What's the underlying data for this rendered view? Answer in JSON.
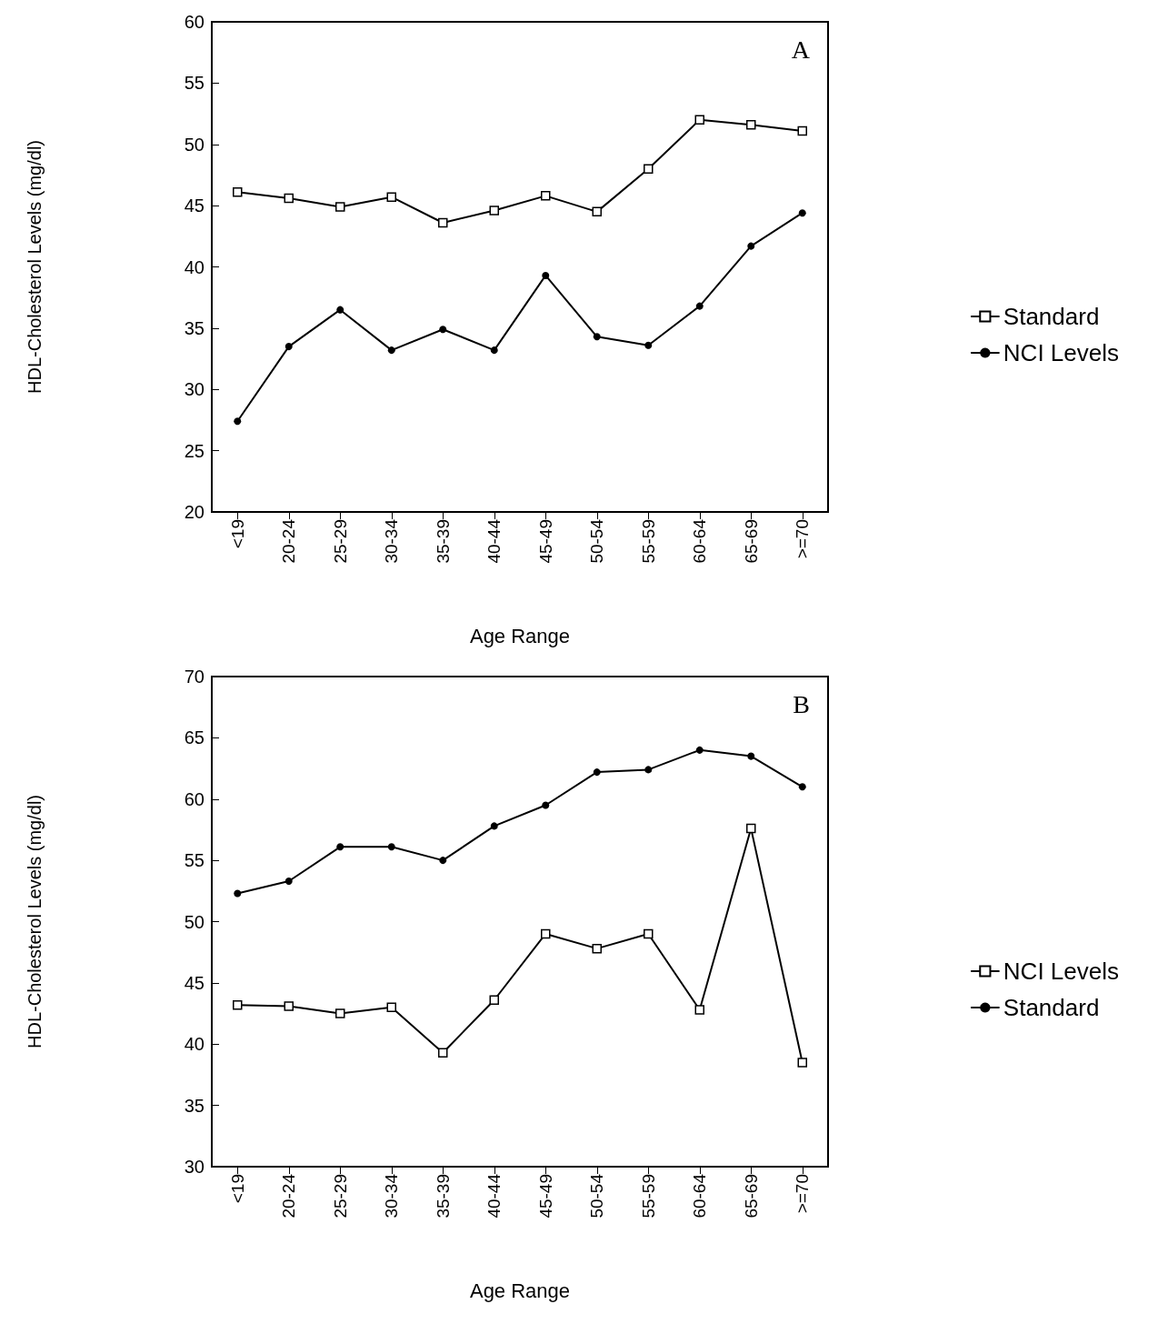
{
  "chart_data": [
    {
      "type": "line",
      "ylabel": "HDL-Cholesterol Levels (mg/dl)",
      "xlabel": "Age Range",
      "annotations": [
        "A"
      ],
      "categories": [
        "<19",
        "20-24",
        "25-29",
        "30-34",
        "35-39",
        "40-44",
        "45-49",
        "50-54",
        "55-59",
        "60-64",
        "65-69",
        ">=70"
      ],
      "series": [
        {
          "name": "Standard",
          "color": "#000000",
          "marker": "square",
          "values": [
            46.1,
            45.6,
            44.9,
            45.7,
            43.6,
            44.6,
            45.8,
            44.5,
            48.0,
            52.0,
            51.6,
            51.1
          ]
        },
        {
          "name": "NCI Levels",
          "color": "#000000",
          "marker": "circle",
          "values": [
            27.4,
            33.5,
            36.5,
            33.2,
            34.9,
            33.2,
            39.3,
            34.3,
            33.6,
            36.8,
            41.7,
            44.4
          ]
        }
      ],
      "ylim": [
        20,
        60
      ],
      "yticks": [
        20,
        25,
        30,
        35,
        40,
        45,
        50,
        55,
        60
      ],
      "grid": false,
      "legend": "right",
      "line_style": "solid"
    },
    {
      "type": "line",
      "ylabel": "HDL-Cholesterol Levels (mg/dl)",
      "xlabel": "Age Range",
      "annotations": [
        "B"
      ],
      "categories": [
        "<19",
        "20-24",
        "25-29",
        "30-34",
        "35-39",
        "40-44",
        "45-49",
        "50-54",
        "55-59",
        "60-64",
        "65-69",
        ">=70"
      ],
      "series": [
        {
          "name": "NCI Levels",
          "color": "#000000",
          "marker": "square",
          "values": [
            43.2,
            43.1,
            42.5,
            43.0,
            39.3,
            43.6,
            49.0,
            47.8,
            49.0,
            42.8,
            57.6,
            38.5
          ]
        },
        {
          "name": "Standard",
          "color": "#000000",
          "marker": "circle",
          "values": [
            52.3,
            53.3,
            56.1,
            56.1,
            55.0,
            57.8,
            59.5,
            62.2,
            62.4,
            64.0,
            63.5,
            61.0
          ]
        }
      ],
      "ylim": [
        30,
        70
      ],
      "yticks": [
        30,
        35,
        40,
        45,
        50,
        55,
        60,
        65,
        70
      ],
      "grid": false,
      "legend": "right",
      "line_style": "solid"
    }
  ]
}
